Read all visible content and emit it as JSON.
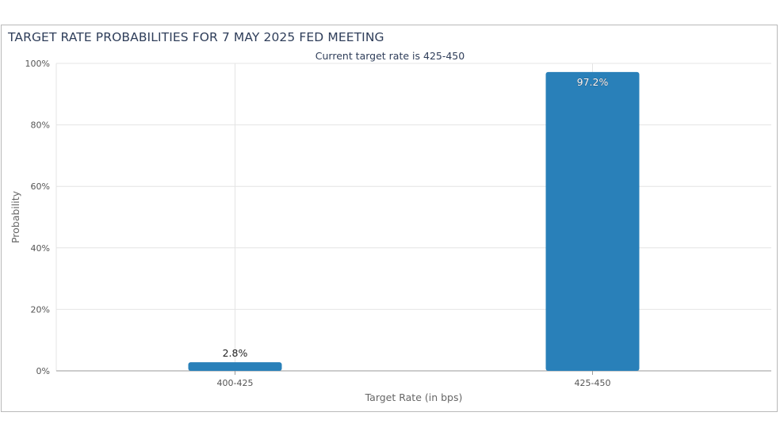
{
  "chart_data": {
    "type": "bar",
    "title": "TARGET RATE PROBABILITIES FOR 7 MAY 2025 FED MEETING",
    "subtitle": "Current target rate is 425-450",
    "xlabel": "Target Rate (in bps)",
    "ylabel": "Probability",
    "categories": [
      "400-425",
      "425-450"
    ],
    "values": [
      2.8,
      97.2
    ],
    "data_labels": [
      "2.8%",
      "97.2%"
    ],
    "ylim": [
      0,
      100
    ],
    "yticks": [
      0,
      20,
      40,
      60,
      80,
      100
    ],
    "ytick_labels": [
      "0%",
      "20%",
      "40%",
      "60%",
      "80%",
      "100%"
    ],
    "grid": true,
    "legend": "none",
    "colors": {
      "bar": "#2980b9",
      "grid": "#e4e4e4",
      "axis": "#9a9a9a",
      "text": "#555555",
      "title": "#2f3e5a"
    }
  }
}
